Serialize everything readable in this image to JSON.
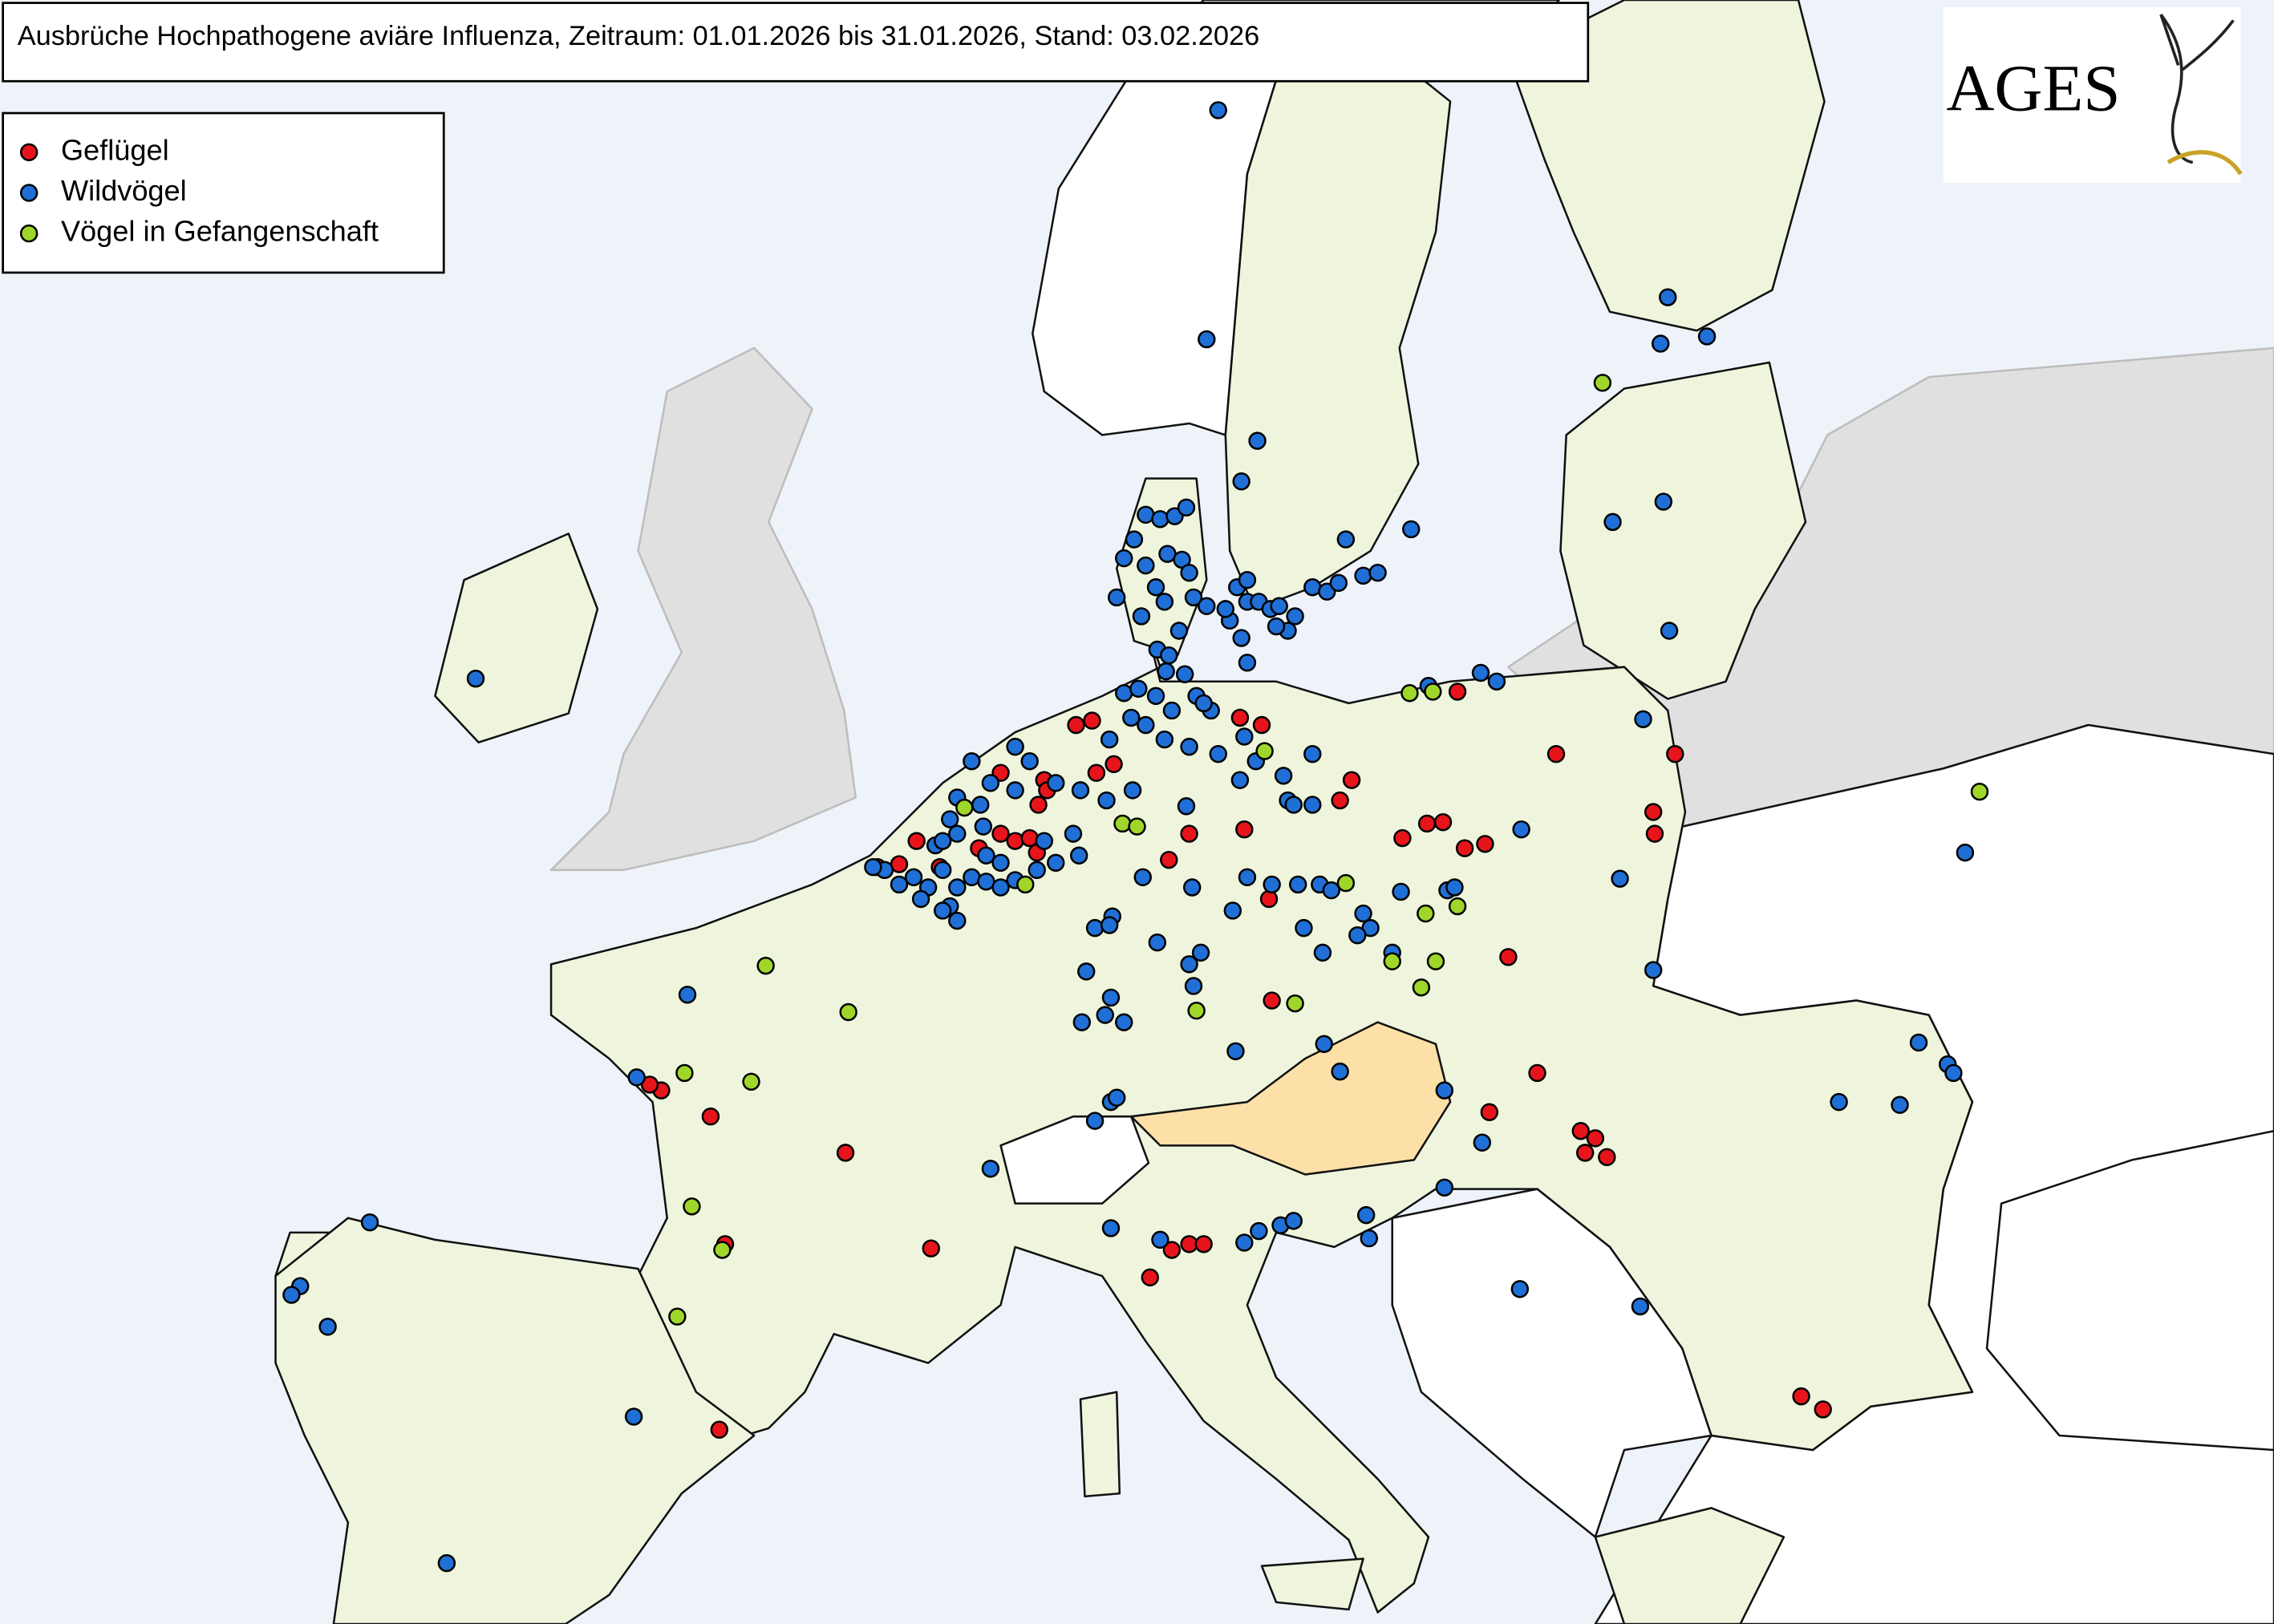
{
  "title": "Ausbrüche Hochpathogene aviäre Influenza, Zeitraum: 01.01.2026 bis 31.01.2026, Stand: 03.02.2026",
  "legend": [
    {
      "label": "Geflügel",
      "color": "#e8141b"
    },
    {
      "label": "Wildvögel",
      "color": "#1f6fd6"
    },
    {
      "label": "Vögel in Gefangenschaft",
      "color": "#9fd62a"
    }
  ],
  "logo": "AGES"
}
